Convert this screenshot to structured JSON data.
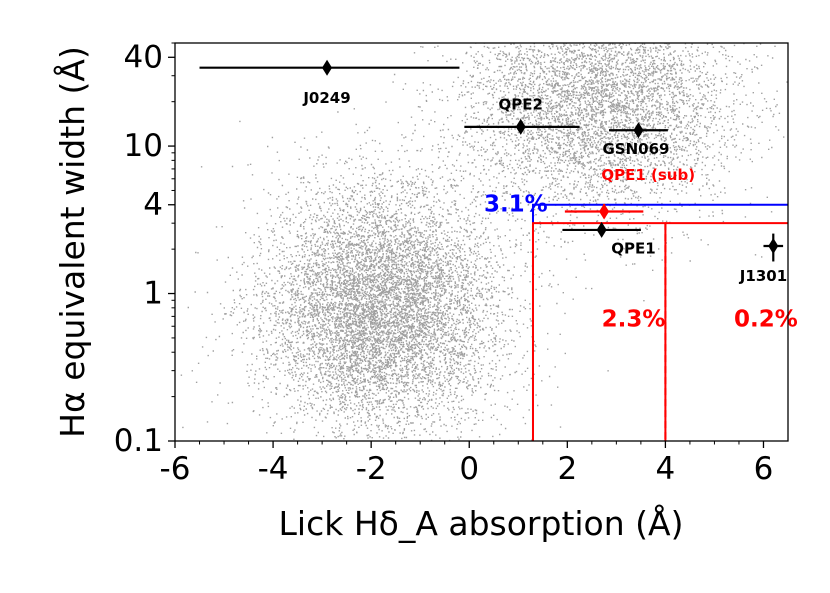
{
  "chart_data": {
    "type": "scatter",
    "xlabel": "Lick Hδ_A absorption (Å)",
    "ylabel": "Hα equivalent width (Å)",
    "xlim": [
      -6,
      6.5
    ],
    "ylim": [
      0.1,
      50
    ],
    "y_scale": "log",
    "x_ticks": [
      -6,
      -4,
      -2,
      0,
      2,
      4,
      6
    ],
    "x_tick_labels": [
      "-6",
      "-4",
      "-2",
      "0",
      "2",
      "4",
      "6"
    ],
    "y_ticks": [
      0.1,
      1,
      4,
      10,
      40
    ],
    "y_tick_labels": [
      "0.1",
      "1",
      "4",
      "10",
      "40"
    ],
    "background_population": {
      "color": "#808080",
      "clusters": [
        {
          "center_x": -1.8,
          "center_log10y": -0.1,
          "sd_x": 1.2,
          "sd_log10y": 0.42,
          "weight": 0.6
        },
        {
          "center_x": 2.6,
          "center_log10y": 1.3,
          "sd_x": 1.4,
          "sd_log10y": 0.38,
          "weight": 0.4
        }
      ]
    },
    "regions": [
      {
        "color": "#0000ff",
        "x_min": 1.3,
        "y_min": 4,
        "label": "3.1%",
        "label_x": 0.3,
        "label_y": 4.0
      },
      {
        "color": "#ff0000",
        "x_min": 1.3,
        "x_max": 4,
        "y_max": 3,
        "label": "2.3%",
        "label_x": 2.7,
        "label_y": 0.66
      },
      {
        "color": "#ff0000",
        "x_min": 4,
        "y_max": 3,
        "label": "0.2%",
        "label_x": 5.4,
        "label_y": 0.66
      }
    ],
    "points": [
      {
        "name": "J0249",
        "x": -2.9,
        "y": 34,
        "xerr_low": 2.6,
        "xerr_high": 2.7,
        "color": "#000000",
        "label_x": -2.9,
        "label_y": 21
      },
      {
        "name": "QPE2",
        "x": 1.05,
        "y": 13.5,
        "xerr_low": 1.15,
        "xerr_high": 1.2,
        "color": "#000000",
        "label_x": 1.05,
        "label_y": 19
      },
      {
        "name": "GSN069",
        "x": 3.45,
        "y": 12.8,
        "xerr_low": 0.6,
        "xerr_high": 0.6,
        "color": "#000000",
        "label_x": 3.4,
        "label_y": 9.5
      },
      {
        "name": "QPE1 (sub)",
        "x": 2.75,
        "y": 3.6,
        "xerr_low": 0.8,
        "xerr_high": 0.8,
        "yerr_low": 0.35,
        "yerr_high": 0.45,
        "color": "#ff0000",
        "label_x": 3.65,
        "label_y": 6.3
      },
      {
        "name": "QPE1",
        "x": 2.7,
        "y": 2.7,
        "xerr_low": 0.8,
        "xerr_high": 0.8,
        "color": "#000000",
        "label_x": 3.35,
        "label_y": 2.0
      },
      {
        "name": "J1301",
        "x": 6.2,
        "y": 2.1,
        "xerr_low": 0.2,
        "xerr_high": 0.2,
        "yerr_low": 0.45,
        "yerr_high": 0.45,
        "color": "#000000",
        "label_x": 6.0,
        "label_y": 1.3
      }
    ]
  }
}
